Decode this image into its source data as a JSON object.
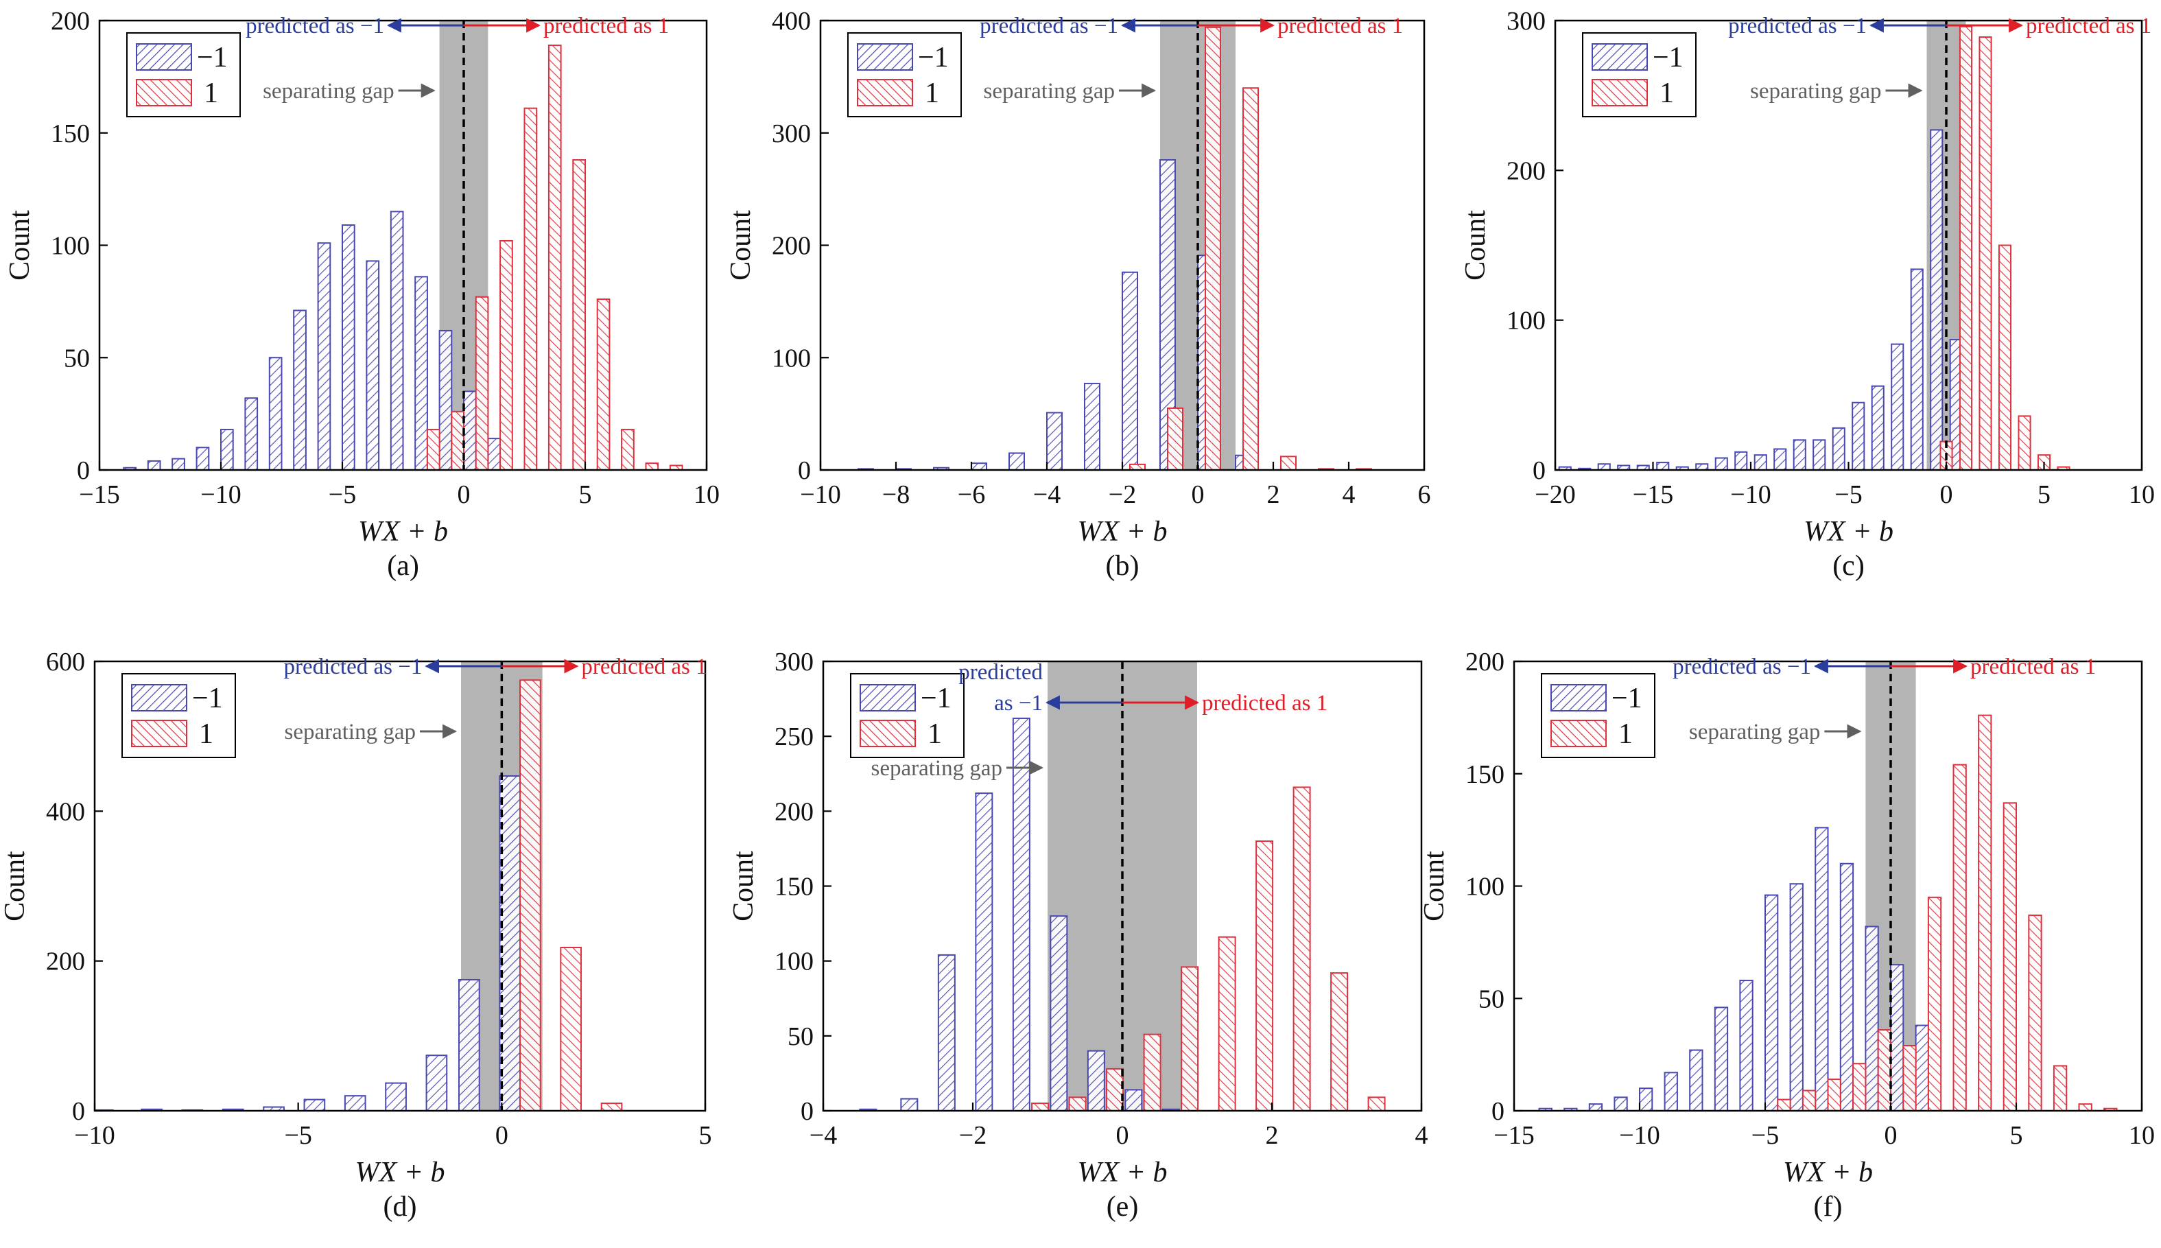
{
  "figure": {
    "panel_labels": [
      "(a)",
      "(b)",
      "(c)",
      "(d)",
      "(e)",
      "(f)"
    ]
  },
  "colors": {
    "neg": "#4848b4",
    "pos": "#e0303c",
    "gap": "#b4b4b4",
    "annot_neg": "#2a3c9c",
    "annot_pos": "#e01e28",
    "annot_gap": "#606060"
  },
  "chart_data": [
    {
      "type": "bar",
      "panel": "(a)",
      "xlabel": "WX + b",
      "ylabel": "Count",
      "xlim": [
        -15,
        10
      ],
      "ylim": [
        0,
        200
      ],
      "xticks": [
        -15,
        -10,
        -5,
        0,
        5,
        10
      ],
      "yticks": [
        0,
        50,
        100,
        150,
        200
      ],
      "xtick_labels": [
        "−15",
        "−10",
        "−5",
        "0",
        "5",
        "10"
      ],
      "ytick_labels": [
        "0",
        "50",
        "100",
        "150",
        "200"
      ],
      "gap": [
        -1,
        1
      ],
      "bar_width": 0.5,
      "legend": {
        "position": "top-left",
        "entries": [
          "−1",
          "1"
        ]
      },
      "annotations": {
        "pred_neg": "predicted as −1",
        "pred_pos": "predicted as 1",
        "gap": "separating gap"
      },
      "series": [
        {
          "name": "−1",
          "x": [
            -13.75,
            -12.75,
            -11.75,
            -10.75,
            -9.75,
            -8.75,
            -7.75,
            -6.75,
            -5.75,
            -4.75,
            -3.75,
            -2.75,
            -1.75,
            -0.75,
            0.25,
            1.25
          ],
          "values": [
            1,
            4,
            5,
            10,
            18,
            32,
            50,
            71,
            101,
            109,
            93,
            115,
            86,
            62,
            35,
            14
          ]
        },
        {
          "name": "1",
          "x": [
            -1.25,
            -0.25,
            0.75,
            1.75,
            2.75,
            3.75,
            4.75,
            5.75,
            6.75,
            7.75,
            8.75
          ],
          "values": [
            18,
            26,
            77,
            102,
            161,
            189,
            138,
            76,
            18,
            3,
            2
          ]
        }
      ]
    },
    {
      "type": "bar",
      "panel": "(b)",
      "xlabel": "WX + b",
      "ylabel": "Count",
      "xlim": [
        -10,
        6
      ],
      "ylim": [
        0,
        400
      ],
      "xticks": [
        -10,
        -8,
        -6,
        -4,
        -2,
        0,
        2,
        4,
        6
      ],
      "yticks": [
        0,
        100,
        200,
        300,
        400
      ],
      "xtick_labels": [
        "−10",
        "−8",
        "−6",
        "−4",
        "−2",
        "0",
        "2",
        "4",
        "6"
      ],
      "ytick_labels": [
        "0",
        "100",
        "200",
        "300",
        "400"
      ],
      "gap": [
        -1,
        1
      ],
      "bar_width": 0.4,
      "legend": {
        "position": "top-left",
        "entries": [
          "−1",
          "1"
        ]
      },
      "annotations": {
        "pred_neg": "predicted as −1",
        "pred_pos": "predicted as 1",
        "gap": "separating gap"
      },
      "series": [
        {
          "name": "−1",
          "x": [
            -8.8,
            -7.8,
            -6.8,
            -5.8,
            -4.8,
            -3.8,
            -2.8,
            -1.8,
            -0.8,
            0.2,
            1.2
          ],
          "values": [
            1,
            1,
            2,
            6,
            15,
            51,
            77,
            176,
            276,
            191,
            13
          ]
        },
        {
          "name": "1",
          "x": [
            -2.6,
            -1.6,
            -0.6,
            0.4,
            1.4,
            2.4,
            3.4,
            4.4
          ],
          "values": [
            0,
            5,
            55,
            394,
            340,
            12,
            1,
            1
          ]
        }
      ]
    },
    {
      "type": "bar",
      "panel": "(c)",
      "xlabel": "WX + b",
      "ylabel": "Count",
      "xlim": [
        -20,
        10
      ],
      "ylim": [
        0,
        300
      ],
      "xticks": [
        -20,
        -15,
        -10,
        -5,
        0,
        5,
        10
      ],
      "yticks": [
        0,
        100,
        200,
        300
      ],
      "xtick_labels": [
        "−20",
        "−15",
        "−10",
        "−5",
        "0",
        "5",
        "10"
      ],
      "ytick_labels": [
        "0",
        "100",
        "200",
        "300"
      ],
      "gap": [
        -1,
        1
      ],
      "bar_width": 0.6,
      "legend": {
        "position": "top-left",
        "entries": [
          "−1",
          "1"
        ]
      },
      "annotations": {
        "pred_neg": "predicted as −1",
        "pred_pos": "predicted as 1",
        "gap": "separating gap"
      },
      "series": [
        {
          "name": "−1",
          "x": [
            -19.5,
            -18.5,
            -17.5,
            -16.5,
            -15.5,
            -14.5,
            -13.5,
            -12.5,
            -11.5,
            -10.5,
            -9.5,
            -8.5,
            -7.5,
            -6.5,
            -5.5,
            -4.5,
            -3.5,
            -2.5,
            -1.5,
            -0.5,
            0.5
          ],
          "values": [
            2,
            1,
            4,
            3,
            3,
            5,
            2,
            4,
            8,
            12,
            10,
            14,
            20,
            20,
            28,
            45,
            56,
            84,
            134,
            227,
            87
          ]
        },
        {
          "name": "1",
          "x": [
            0.0,
            1.0,
            2.0,
            3.0,
            4.0,
            5.0,
            6.0
          ],
          "values": [
            19,
            296,
            289,
            150,
            36,
            10,
            2
          ]
        }
      ]
    },
    {
      "type": "bar",
      "panel": "(d)",
      "xlabel": "WX + b",
      "ylabel": "Count",
      "xlim": [
        -10,
        5
      ],
      "ylim": [
        0,
        600
      ],
      "xticks": [
        -10,
        -5,
        0,
        5
      ],
      "yticks": [
        0,
        200,
        400,
        600
      ],
      "xtick_labels": [
        "−10",
        "−5",
        "0",
        "5"
      ],
      "ytick_labels": [
        "0",
        "200",
        "400",
        "600"
      ],
      "gap": [
        -1,
        1
      ],
      "bar_width": 0.5,
      "legend": {
        "position": "top-left",
        "entries": [
          "−1",
          "1"
        ]
      },
      "annotations": {
        "pred_neg": "predicted as −1",
        "pred_pos": "predicted as 1",
        "gap": "separating gap"
      },
      "series": [
        {
          "name": "−1",
          "x": [
            -9.8,
            -8.6,
            -7.6,
            -6.6,
            -5.6,
            -4.6,
            -3.6,
            -2.6,
            -1.6,
            -0.8,
            0.2
          ],
          "values": [
            1,
            2,
            1,
            2,
            5,
            15,
            20,
            37,
            74,
            175,
            447
          ]
        },
        {
          "name": "1",
          "x": [
            0.7,
            1.7,
            2.7
          ],
          "values": [
            575,
            218,
            10
          ]
        }
      ]
    },
    {
      "type": "bar",
      "panel": "(e)",
      "xlabel": "WX + b",
      "ylabel": "Count",
      "xlim": [
        -4,
        4
      ],
      "ylim": [
        0,
        300
      ],
      "xticks": [
        -4,
        -2,
        0,
        2,
        4
      ],
      "yticks": [
        0,
        50,
        100,
        150,
        200,
        250,
        300
      ],
      "xtick_labels": [
        "−4",
        "−2",
        "0",
        "2",
        "4"
      ],
      "ytick_labels": [
        "0",
        "50",
        "100",
        "150",
        "200",
        "250",
        "300"
      ],
      "gap": [
        -1,
        1
      ],
      "bar_width": 0.22,
      "legend": {
        "position": "top-left",
        "entries": [
          "−1",
          "1"
        ]
      },
      "annotations": {
        "pred_neg": "predicted\nas −1",
        "pred_pos": "predicted as 1",
        "gap": "separating gap"
      },
      "series": [
        {
          "name": "−1",
          "x": [
            -3.4,
            -2.85,
            -2.35,
            -1.85,
            -1.35,
            -0.85,
            -0.35,
            0.15,
            0.65
          ],
          "values": [
            1,
            8,
            104,
            212,
            262,
            130,
            40,
            14,
            1
          ]
        },
        {
          "name": "1",
          "x": [
            -1.1,
            -0.6,
            -0.1,
            0.4,
            0.9,
            1.4,
            1.9,
            2.4,
            2.9,
            3.4
          ],
          "values": [
            5,
            9,
            28,
            51,
            96,
            116,
            180,
            216,
            92,
            9
          ]
        }
      ]
    },
    {
      "type": "bar",
      "panel": "(f)",
      "xlabel": "WX + b",
      "ylabel": "Count",
      "xlim": [
        -15,
        10
      ],
      "ylim": [
        0,
        200
      ],
      "xticks": [
        -15,
        -10,
        -5,
        0,
        5,
        10
      ],
      "yticks": [
        0,
        50,
        100,
        150,
        200
      ],
      "xtick_labels": [
        "−15",
        "−10",
        "−5",
        "0",
        "5",
        "10"
      ],
      "ytick_labels": [
        "0",
        "50",
        "100",
        "150",
        "200"
      ],
      "gap": [
        -1,
        1
      ],
      "bar_width": 0.5,
      "legend": {
        "position": "top-left",
        "entries": [
          "−1",
          "1"
        ]
      },
      "annotations": {
        "pred_neg": "predicted as −1",
        "pred_pos": "predicted as 1",
        "gap": "separating gap"
      },
      "series": [
        {
          "name": "−1",
          "x": [
            -13.75,
            -12.75,
            -11.75,
            -10.75,
            -9.75,
            -8.75,
            -7.75,
            -6.75,
            -5.75,
            -4.75,
            -3.75,
            -2.75,
            -1.75,
            -0.75,
            0.25,
            1.25
          ],
          "values": [
            1,
            1,
            3,
            6,
            10,
            17,
            27,
            46,
            58,
            96,
            101,
            126,
            110,
            82,
            65,
            38
          ]
        },
        {
          "name": "1",
          "x": [
            -4.25,
            -3.25,
            -2.25,
            -1.25,
            -0.25,
            0.75,
            1.75,
            2.75,
            3.75,
            4.75,
            5.75,
            6.75,
            7.75,
            8.75
          ],
          "values": [
            5,
            9,
            14,
            21,
            36,
            29,
            95,
            154,
            176,
            137,
            87,
            20,
            3,
            1
          ]
        }
      ]
    }
  ]
}
